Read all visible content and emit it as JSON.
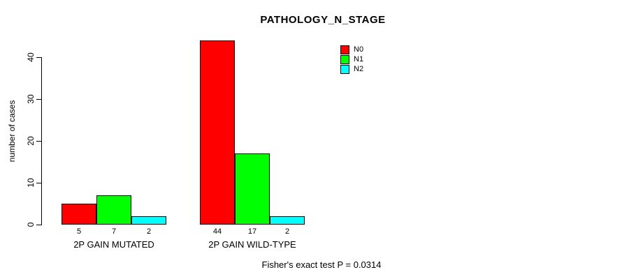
{
  "title": "PATHOLOGY_N_STAGE",
  "ylabel": "number of cases",
  "footer": "Fisher's exact test P = 0.0314",
  "legend": {
    "position": "top-right",
    "items": [
      {
        "label": "N0",
        "color": "#FF0000"
      },
      {
        "label": "N1",
        "color": "#00FF00"
      },
      {
        "label": "N2",
        "color": "#00FFFF"
      }
    ]
  },
  "chart_data": {
    "type": "bar",
    "title": "PATHOLOGY_N_STAGE",
    "xlabel": "",
    "ylabel": "number of cases",
    "categories": [
      "2P GAIN MUTATED",
      "2P GAIN WILD-TYPE"
    ],
    "series": [
      {
        "name": "N0",
        "color": "#FF0000",
        "values": [
          5,
          44
        ]
      },
      {
        "name": "N1",
        "color": "#00FF00",
        "values": [
          7,
          17
        ]
      },
      {
        "name": "N2",
        "color": "#00FFFF",
        "values": [
          2,
          2
        ]
      }
    ],
    "bar_value_labels": [
      [
        5,
        7,
        2
      ],
      [
        44,
        17,
        2
      ]
    ],
    "yticks": [
      0,
      10,
      20,
      30,
      40
    ],
    "ylim": [
      0,
      44
    ],
    "grid": false,
    "legend_position": "top-right",
    "annotation": "Fisher's exact test P = 0.0314"
  }
}
